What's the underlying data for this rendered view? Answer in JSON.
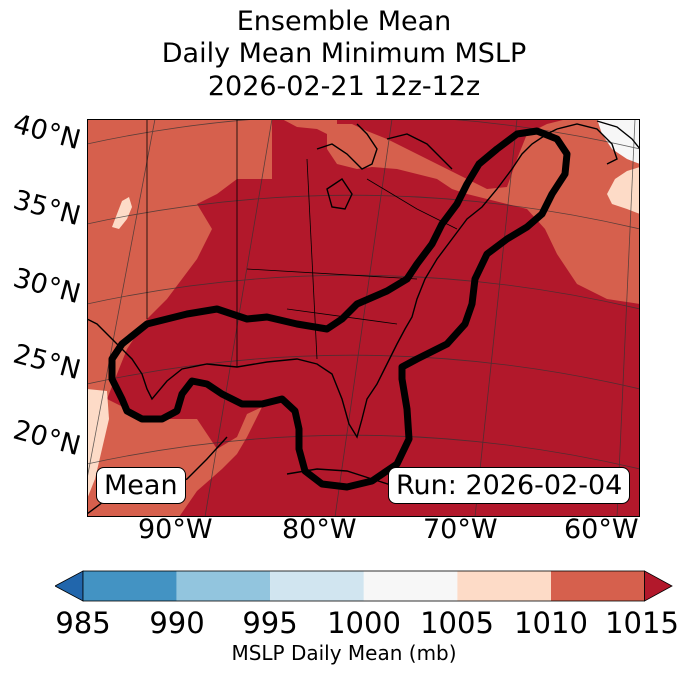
{
  "title": {
    "line1": "Ensemble Mean",
    "line2": "Daily Mean Minimum MSLP",
    "line3": "2026-02-21 12z-12z"
  },
  "map": {
    "lat_labels": [
      "40°N",
      "35°N",
      "30°N",
      "25°N",
      "20°N"
    ],
    "lon_labels": [
      "90°W",
      "80°W",
      "70°W",
      "60°W"
    ],
    "mean_box": "Mean",
    "run_box": "Run: 2026-02-04",
    "fill_colors": {
      "c1005_1010": "#fddbc7",
      "c1010_1015": "#d6604d",
      "c1015_plus": "#b2182b",
      "c1000_1005": "#f7f7f7"
    }
  },
  "colorbar": {
    "ticks": [
      "985",
      "990",
      "995",
      "1000",
      "1005",
      "1010",
      "1015"
    ],
    "colors": [
      "#4393c3",
      "#92c5de",
      "#d1e5f0",
      "#f7f7f7",
      "#fddbc7",
      "#d6604d"
    ],
    "under_color": "#2166ac",
    "over_color": "#b2182b",
    "label": "MSLP Daily Mean (mb)"
  }
}
